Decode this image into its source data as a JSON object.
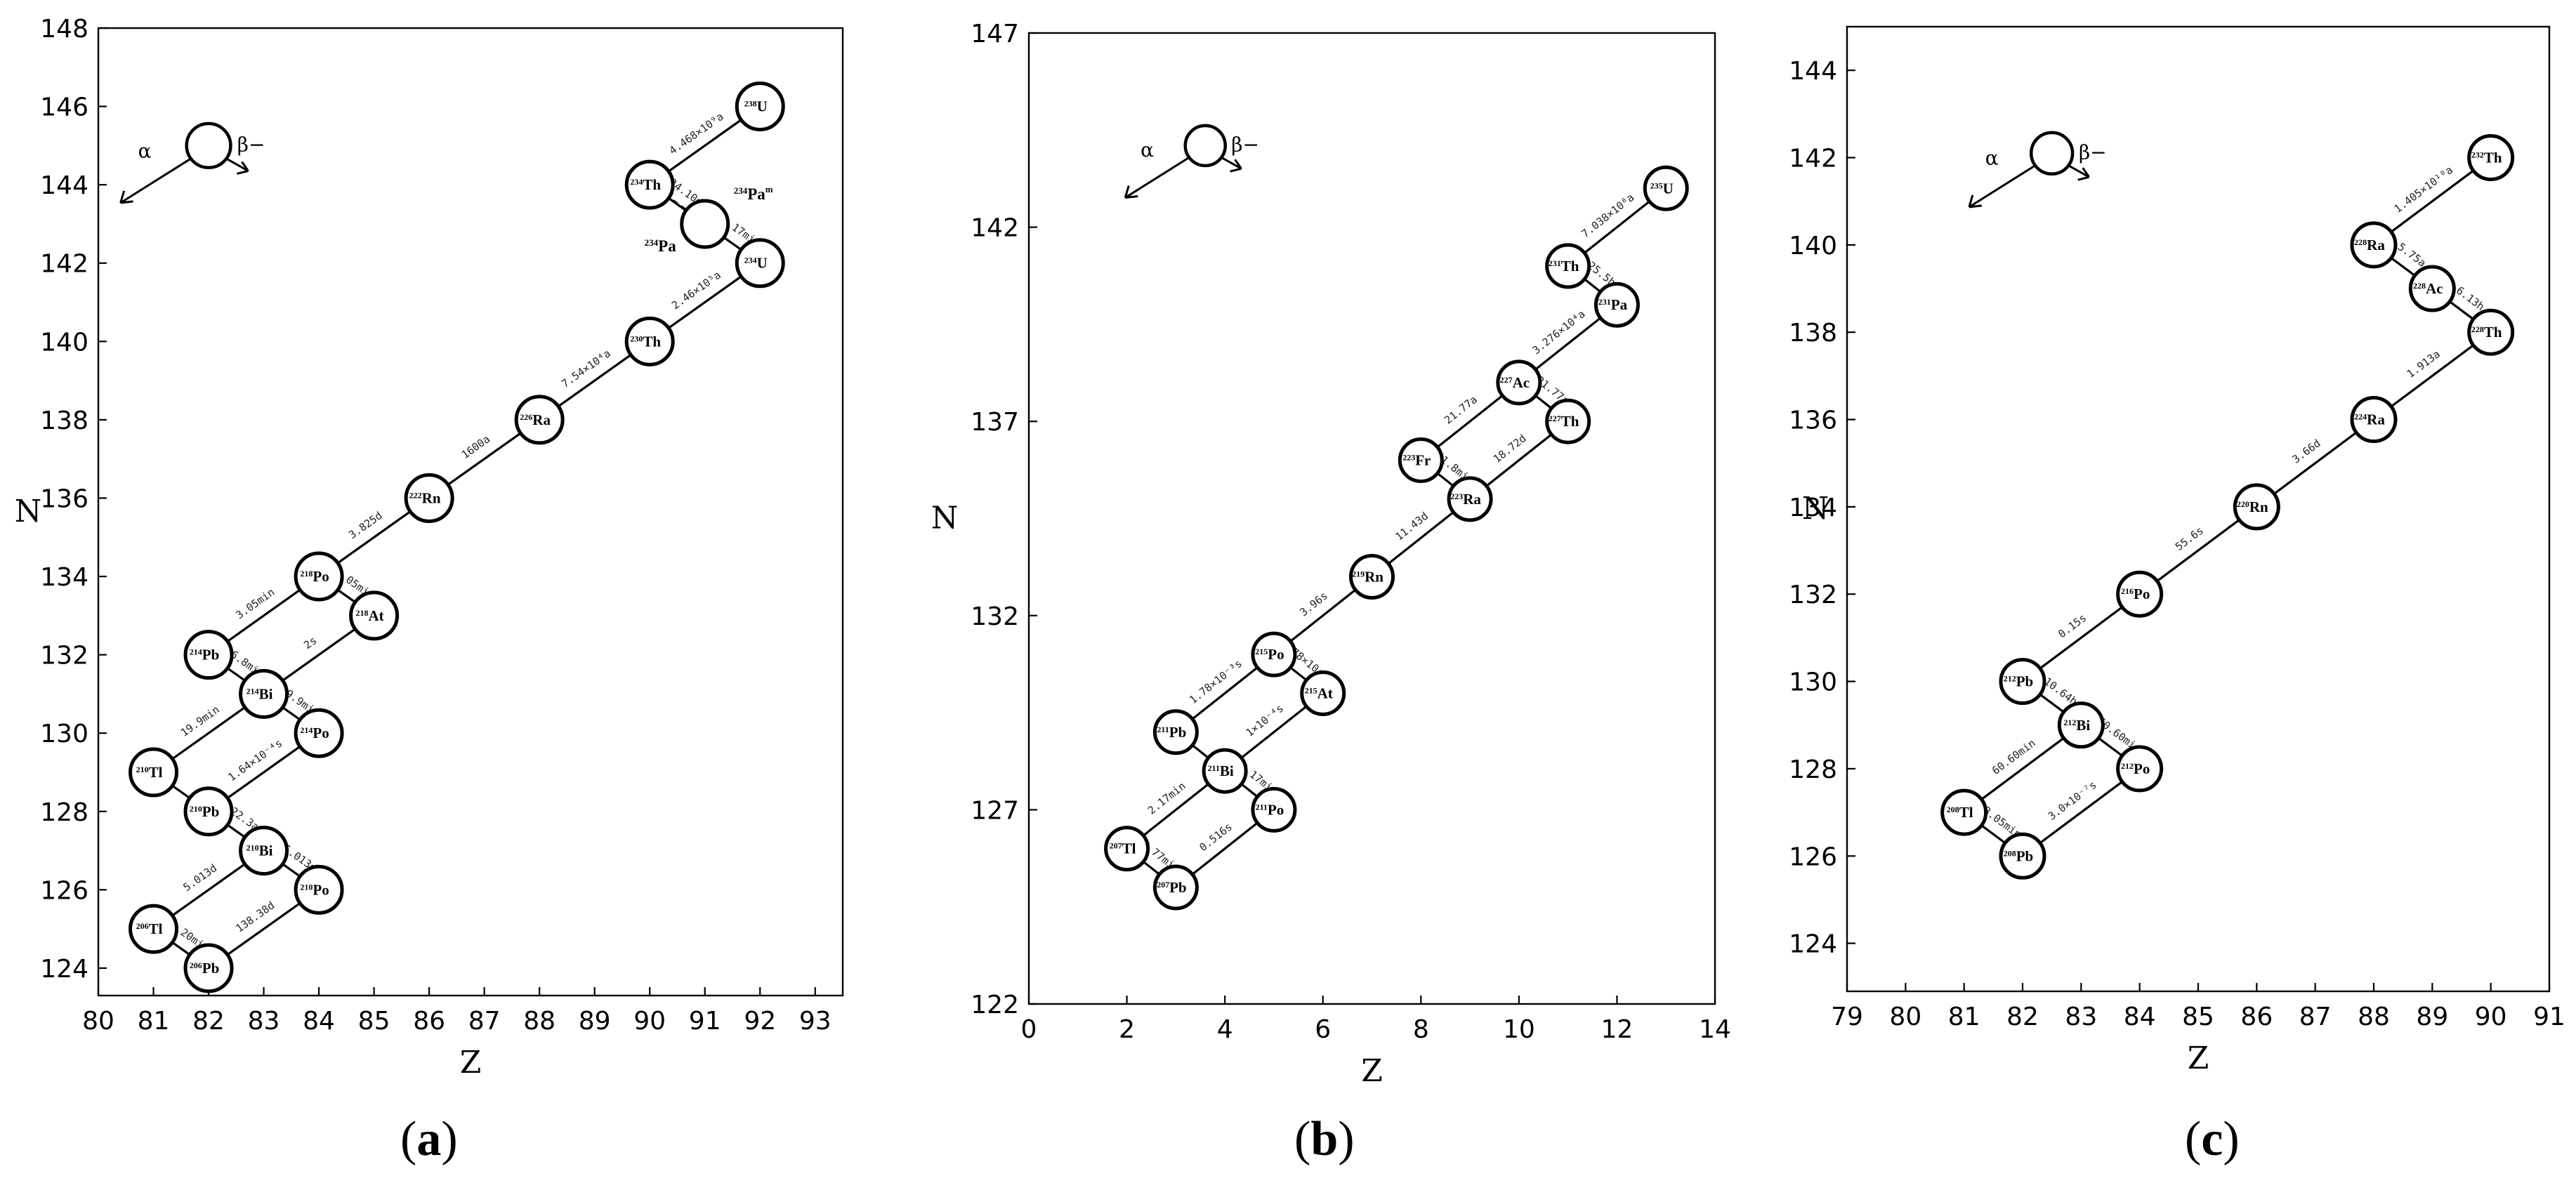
{
  "figure": {
    "panel_labels": [
      "(",
      "a",
      ")",
      "(",
      "b",
      ")",
      "(",
      "c",
      ")"
    ]
  },
  "chart_data": [
    {
      "type": "scatter",
      "panel": "(a)",
      "title": "",
      "xlabel": "Z",
      "ylabel": "N",
      "xlim": [
        80,
        93.5
      ],
      "ylim": [
        123.3,
        148
      ],
      "xticks": [
        80,
        81,
        82,
        83,
        84,
        85,
        86,
        87,
        88,
        89,
        90,
        91,
        92,
        93
      ],
      "yticks": [
        124,
        126,
        128,
        130,
        132,
        134,
        136,
        138,
        140,
        142,
        144,
        146,
        148
      ],
      "legend": {
        "alpha": "α",
        "beta": "β−",
        "z": 82,
        "n": 145
      },
      "nuclides": [
        {
          "id": "U238",
          "mass": "238",
          "sym": "U",
          "z": 92,
          "n": 146
        },
        {
          "id": "Th234",
          "mass": "234",
          "sym": "Th",
          "z": 90,
          "n": 144
        },
        {
          "id": "Pa234m",
          "mass": "",
          "sym": "",
          "z": 91,
          "n": 143
        },
        {
          "id": "U234",
          "mass": "234",
          "sym": "U",
          "z": 92,
          "n": 142
        },
        {
          "id": "Th230",
          "mass": "230",
          "sym": "Th",
          "z": 90,
          "n": 140
        },
        {
          "id": "Ra226",
          "mass": "226",
          "sym": "Ra",
          "z": 88,
          "n": 138
        },
        {
          "id": "Rn222",
          "mass": "222",
          "sym": "Rn",
          "z": 86,
          "n": 136
        },
        {
          "id": "Po218",
          "mass": "218",
          "sym": "Po",
          "z": 84,
          "n": 134
        },
        {
          "id": "At218",
          "mass": "218",
          "sym": "At",
          "z": 85,
          "n": 133
        },
        {
          "id": "Pb214",
          "mass": "214",
          "sym": "Pb",
          "z": 82,
          "n": 132
        },
        {
          "id": "Bi214",
          "mass": "214",
          "sym": "Bi",
          "z": 83,
          "n": 131
        },
        {
          "id": "Po214",
          "mass": "214",
          "sym": "Po",
          "z": 84,
          "n": 130
        },
        {
          "id": "Tl210",
          "mass": "210",
          "sym": "Tl",
          "z": 81,
          "n": 129
        },
        {
          "id": "Pb210",
          "mass": "210",
          "sym": "Pb",
          "z": 82,
          "n": 128
        },
        {
          "id": "Bi210",
          "mass": "210",
          "sym": "Bi",
          "z": 83,
          "n": 127
        },
        {
          "id": "Po210",
          "mass": "210",
          "sym": "Po",
          "z": 84,
          "n": 126
        },
        {
          "id": "Tl206",
          "mass": "206",
          "sym": "Tl",
          "z": 81,
          "n": 125
        },
        {
          "id": "Pb206",
          "mass": "206",
          "sym": "Pb",
          "z": 82,
          "n": 124
        }
      ],
      "external_labels": [
        {
          "mass": "234",
          "sym": "Pa",
          "sup": "m",
          "anchor": "Pa234m",
          "pos": "right-up"
        },
        {
          "mass": "234",
          "sym": "Pa",
          "sup": "",
          "anchor": "Pa234m",
          "pos": "left-down"
        }
      ],
      "decays": [
        {
          "from": "U238",
          "to": "Th234",
          "label": "4.468×10⁹a",
          "style": "solid"
        },
        {
          "from": "Th234",
          "to": "Pa234m",
          "label": "24.10d",
          "style": "solid"
        },
        {
          "from": "Pa234m",
          "to": "U234",
          "label": "1.17min",
          "style": "solid"
        },
        {
          "from": "Th234",
          "to": "Pa234m",
          "label": "",
          "style": "dashed",
          "offset": 1
        },
        {
          "from": "U234",
          "to": "Th230",
          "label": "2.46×10⁵a",
          "style": "solid"
        },
        {
          "from": "Th230",
          "to": "Ra226",
          "label": "7.54×10⁴a",
          "style": "solid"
        },
        {
          "from": "Ra226",
          "to": "Rn222",
          "label": "1600a",
          "style": "solid"
        },
        {
          "from": "Rn222",
          "to": "Po218",
          "label": "3.825d",
          "style": "solid"
        },
        {
          "from": "Po218",
          "to": "Pb214",
          "label": "3.05min",
          "style": "solid"
        },
        {
          "from": "Po218",
          "to": "At218",
          "label": "3.05min",
          "style": "solid"
        },
        {
          "from": "At218",
          "to": "Bi214",
          "label": "2s",
          "style": "solid"
        },
        {
          "from": "Pb214",
          "to": "Bi214",
          "label": "26.8min",
          "style": "solid"
        },
        {
          "from": "Bi214",
          "to": "Po214",
          "label": "19.9min",
          "style": "solid"
        },
        {
          "from": "Bi214",
          "to": "Tl210",
          "label": "19.9min",
          "style": "solid"
        },
        {
          "from": "Po214",
          "to": "Pb210",
          "label": "1.64×10⁻⁴s",
          "style": "solid"
        },
        {
          "from": "Tl210",
          "to": "Pb210",
          "label": "",
          "style": "solid"
        },
        {
          "from": "Pb210",
          "to": "Bi210",
          "label": "22.3a",
          "style": "solid"
        },
        {
          "from": "Bi210",
          "to": "Po210",
          "label": "5.013d",
          "style": "solid"
        },
        {
          "from": "Bi210",
          "to": "Tl206",
          "label": "5.013d",
          "style": "solid"
        },
        {
          "from": "Po210",
          "to": "Pb206",
          "label": "138.38d",
          "style": "solid"
        },
        {
          "from": "Tl206",
          "to": "Pb206",
          "label": "4.20min",
          "style": "solid"
        }
      ]
    },
    {
      "type": "scatter",
      "panel": "(b)",
      "title": "",
      "xlabel": "Z",
      "ylabel": "N",
      "xlim": [
        0,
        14
      ],
      "ylim": [
        122,
        147
      ],
      "xticks": [
        0,
        2,
        4,
        6,
        8,
        10,
        12,
        14
      ],
      "yticks": [
        122,
        127,
        132,
        137,
        142,
        147
      ],
      "legend": {
        "alpha": "α",
        "beta": "β−",
        "z": 3.6,
        "n": 144.1
      },
      "nuclides": [
        {
          "id": "U235",
          "mass": "235",
          "sym": "U",
          "z": 13,
          "n": 143
        },
        {
          "id": "Th231",
          "mass": "231",
          "sym": "Th",
          "z": 11,
          "n": 141
        },
        {
          "id": "Pa231",
          "mass": "231",
          "sym": "Pa",
          "z": 12,
          "n": 140
        },
        {
          "id": "Ac227",
          "mass": "227",
          "sym": "Ac",
          "z": 10,
          "n": 138
        },
        {
          "id": "Th227",
          "mass": "227",
          "sym": "Th",
          "z": 11,
          "n": 137
        },
        {
          "id": "Fr223",
          "mass": "223",
          "sym": "Fr",
          "z": 8,
          "n": 136
        },
        {
          "id": "Ra223",
          "mass": "223",
          "sym": "Ra",
          "z": 9,
          "n": 135
        },
        {
          "id": "Rn219",
          "mass": "219",
          "sym": "Rn",
          "z": 7,
          "n": 133
        },
        {
          "id": "Po215",
          "mass": "215",
          "sym": "Po",
          "z": 5,
          "n": 131
        },
        {
          "id": "At215",
          "mass": "215",
          "sym": "At",
          "z": 6,
          "n": 130
        },
        {
          "id": "Pb211",
          "mass": "211",
          "sym": "Pb",
          "z": 3,
          "n": 129
        },
        {
          "id": "Bi211",
          "mass": "211",
          "sym": "Bi",
          "z": 4,
          "n": 128
        },
        {
          "id": "Po211",
          "mass": "211",
          "sym": "Po",
          "z": 5,
          "n": 127
        },
        {
          "id": "Tl207",
          "mass": "207",
          "sym": "Tl",
          "z": 2,
          "n": 126
        },
        {
          "id": "Pb207",
          "mass": "207",
          "sym": "Pb",
          "z": 3,
          "n": 125
        }
      ],
      "external_labels": [],
      "decays": [
        {
          "from": "U235",
          "to": "Th231",
          "label": "7.038×10⁸a",
          "style": "solid"
        },
        {
          "from": "Th231",
          "to": "Pa231",
          "label": "25.5h",
          "style": "solid"
        },
        {
          "from": "Pa231",
          "to": "Ac227",
          "label": "3.276×10⁴a",
          "style": "solid"
        },
        {
          "from": "Ac227",
          "to": "Th227",
          "label": "21.77a",
          "style": "solid"
        },
        {
          "from": "Ac227",
          "to": "Fr223",
          "label": "21.77a",
          "style": "solid"
        },
        {
          "from": "Th227",
          "to": "Ra223",
          "label": "18.72d",
          "style": "solid"
        },
        {
          "from": "Fr223",
          "to": "Ra223",
          "label": "21.8min",
          "style": "solid"
        },
        {
          "from": "Ra223",
          "to": "Rn219",
          "label": "11.43d",
          "style": "solid"
        },
        {
          "from": "Rn219",
          "to": "Po215",
          "label": "3.96s",
          "style": "solid"
        },
        {
          "from": "Po215",
          "to": "Pb211",
          "label": "1.78×10⁻³s",
          "style": "solid"
        },
        {
          "from": "Po215",
          "to": "At215",
          "label": "1.78×10⁻³s",
          "style": "solid"
        },
        {
          "from": "At215",
          "to": "Bi211",
          "label": "1×10⁻⁴s",
          "style": "solid"
        },
        {
          "from": "Pb211",
          "to": "Bi211",
          "label": "",
          "style": "solid"
        },
        {
          "from": "Bi211",
          "to": "Po211",
          "label": "2.17min",
          "style": "solid"
        },
        {
          "from": "Bi211",
          "to": "Tl207",
          "label": "2.17min",
          "style": "solid"
        },
        {
          "from": "Po211",
          "to": "Pb207",
          "label": "0.516s",
          "style": "solid"
        },
        {
          "from": "Tl207",
          "to": "Pb207",
          "label": "4.77min",
          "style": "solid"
        }
      ]
    },
    {
      "type": "scatter",
      "panel": "(c)",
      "title": "",
      "xlabel": "Z",
      "ylabel": "N",
      "xlim": [
        79,
        91
      ],
      "ylim": [
        122.9,
        145
      ],
      "xticks": [
        79,
        80,
        81,
        82,
        83,
        84,
        85,
        86,
        87,
        88,
        89,
        90,
        91
      ],
      "yticks": [
        124,
        126,
        128,
        130,
        132,
        134,
        136,
        138,
        140,
        142,
        144
      ],
      "legend": {
        "alpha": "α",
        "beta": "β−",
        "z": 82.5,
        "n": 142.1
      },
      "nuclides": [
        {
          "id": "Th232",
          "mass": "232",
          "sym": "Th",
          "z": 90,
          "n": 142
        },
        {
          "id": "Ra228",
          "mass": "228",
          "sym": "Ra",
          "z": 88,
          "n": 140
        },
        {
          "id": "Ac228",
          "mass": "228",
          "sym": "Ac",
          "z": 89,
          "n": 139
        },
        {
          "id": "Th228",
          "mass": "228",
          "sym": "Th",
          "z": 90,
          "n": 138
        },
        {
          "id": "Ra224",
          "mass": "224",
          "sym": "Ra",
          "z": 88,
          "n": 136
        },
        {
          "id": "Rn220",
          "mass": "220",
          "sym": "Rn",
          "z": 86,
          "n": 134
        },
        {
          "id": "Po216",
          "mass": "216",
          "sym": "Po",
          "z": 84,
          "n": 132
        },
        {
          "id": "Pb212",
          "mass": "212",
          "sym": "Pb",
          "z": 82,
          "n": 130
        },
        {
          "id": "Bi212",
          "mass": "212",
          "sym": "Bi",
          "z": 83,
          "n": 129
        },
        {
          "id": "Po212",
          "mass": "212",
          "sym": "Po",
          "z": 84,
          "n": 128
        },
        {
          "id": "Tl208",
          "mass": "208",
          "sym": "Tl",
          "z": 81,
          "n": 127
        },
        {
          "id": "Pb208",
          "mass": "208",
          "sym": "Pb",
          "z": 82,
          "n": 126
        }
      ],
      "external_labels": [],
      "decays": [
        {
          "from": "Th232",
          "to": "Ra228",
          "label": "1.405×10¹⁰a",
          "style": "solid"
        },
        {
          "from": "Ra228",
          "to": "Ac228",
          "label": "5.75a",
          "style": "solid"
        },
        {
          "from": "Ac228",
          "to": "Th228",
          "label": "6.13h",
          "style": "solid"
        },
        {
          "from": "Th228",
          "to": "Ra224",
          "label": "1.913a",
          "style": "solid"
        },
        {
          "from": "Ra224",
          "to": "Rn220",
          "label": "3.66d",
          "style": "solid"
        },
        {
          "from": "Rn220",
          "to": "Po216",
          "label": "55.6s",
          "style": "solid"
        },
        {
          "from": "Po216",
          "to": "Pb212",
          "label": "0.15s",
          "style": "solid"
        },
        {
          "from": "Pb212",
          "to": "Bi212",
          "label": "10.64h",
          "style": "solid"
        },
        {
          "from": "Bi212",
          "to": "Po212",
          "label": "60.60min",
          "style": "solid"
        },
        {
          "from": "Bi212",
          "to": "Tl208",
          "label": "60.60min",
          "style": "solid"
        },
        {
          "from": "Po212",
          "to": "Pb208",
          "label": "3.0×10⁻⁷s",
          "style": "solid"
        },
        {
          "from": "Tl208",
          "to": "Pb208",
          "label": "3.05min",
          "style": "solid"
        }
      ]
    }
  ]
}
